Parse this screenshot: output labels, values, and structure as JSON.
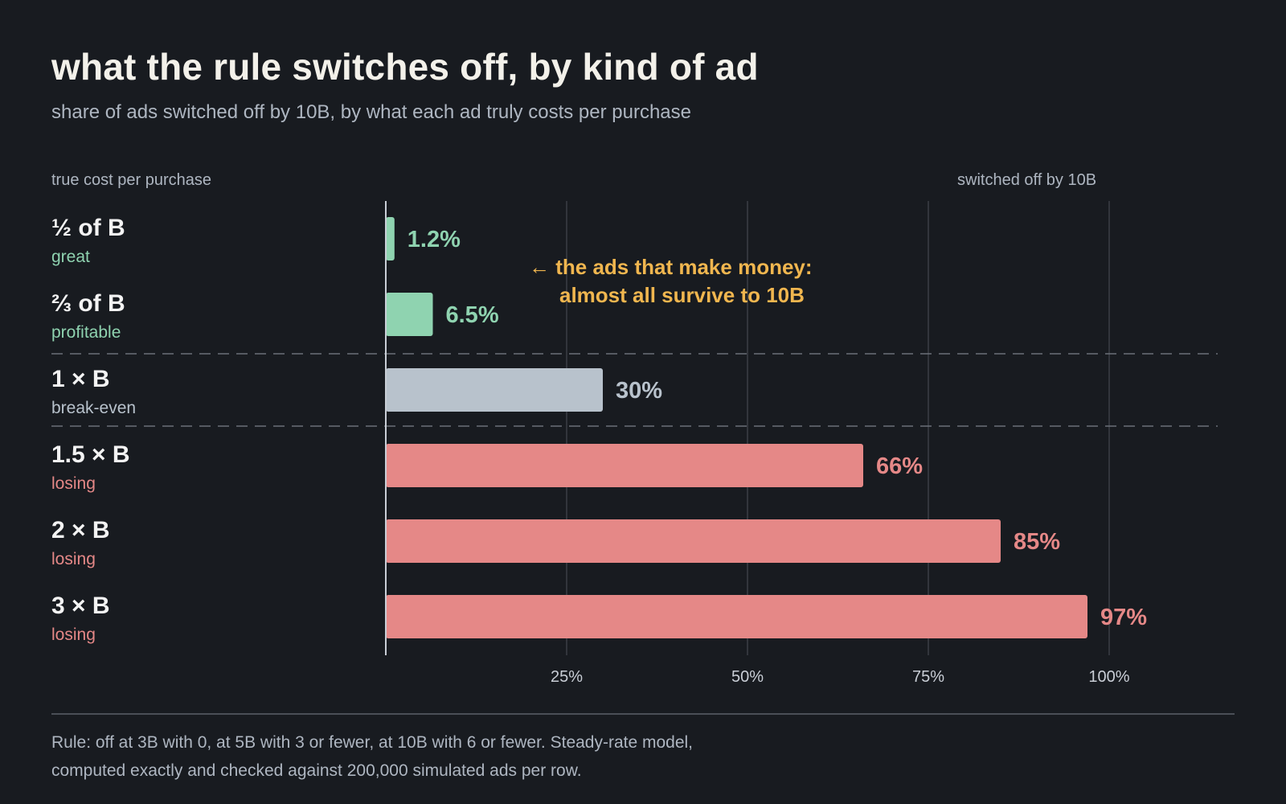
{
  "header": {
    "title": "what the rule switches off, by kind of ad",
    "subtitle": "share of ads switched off by 10B, by what each ad truly costs per purchase"
  },
  "columns": {
    "left": "true cost per purchase",
    "right": "switched off by 10B"
  },
  "annotation": {
    "lines": [
      "← the ads that make money:",
      "almost all survive to 10B"
    ],
    "color": "#f0b64f"
  },
  "footnote": {
    "lines": [
      "Rule: off at 3B with 0, at 5B with 3 or fewer, at 10B with 6 or fewer. Steady-rate model,",
      "computed exactly and checked against 200,000 simulated ads per row."
    ]
  },
  "colors": {
    "profit": "#8fd3b0",
    "neutral": "#b8c2cc",
    "loss": "#e58887",
    "grid": "#3a3e45",
    "axis": "#c9ced6",
    "tick": "#c9ced6",
    "background": "#181b20"
  },
  "chart_data": {
    "type": "bar",
    "orientation": "horizontal",
    "xlim": [
      0,
      100
    ],
    "x_ticks": [
      25,
      50,
      75,
      100
    ],
    "x_tick_labels": [
      "25%",
      "50%",
      "75%",
      "100%"
    ],
    "grid": true,
    "categories": [
      "½ of B",
      "⅔ of B",
      "1 × B",
      "1.5 × B",
      "2 × B",
      "3 × B"
    ],
    "sublabels": [
      "great",
      "profitable",
      "break-even",
      "losing",
      "losing",
      "losing"
    ],
    "values": [
      1.2,
      6.5,
      30,
      66,
      85,
      97
    ],
    "value_labels": [
      "1.2%",
      "6.5%",
      "30%",
      "66%",
      "85%",
      "97%"
    ],
    "groups": [
      "profit",
      "profit",
      "neutral",
      "loss",
      "loss",
      "loss"
    ]
  }
}
